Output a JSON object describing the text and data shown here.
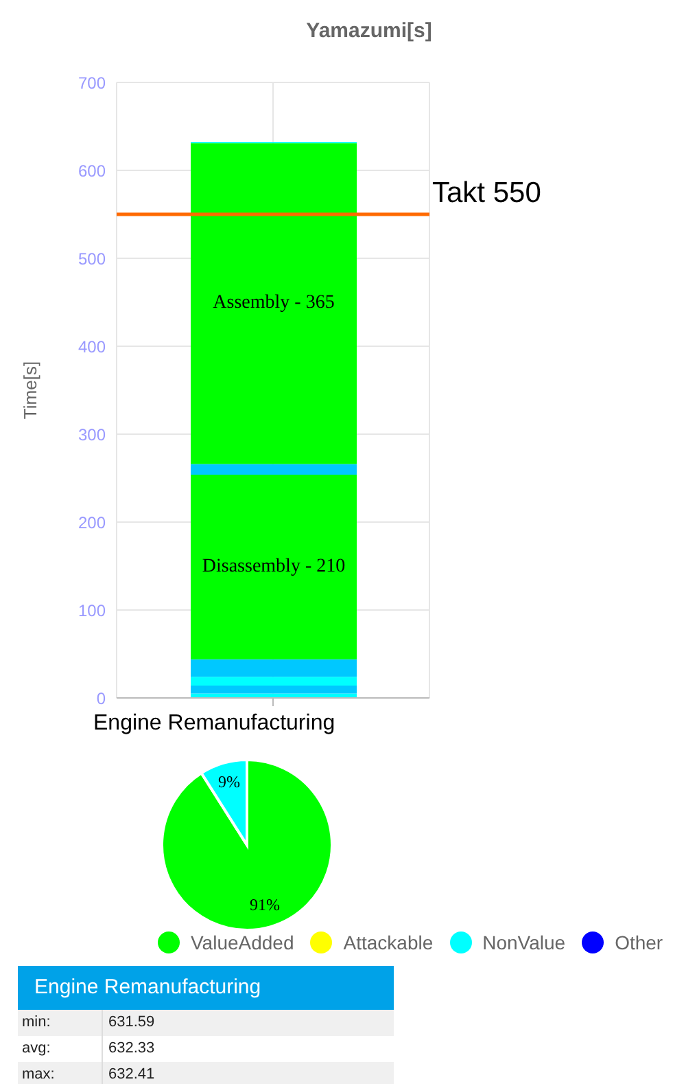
{
  "chart_data": [
    {
      "type": "bar",
      "title": "Yamazumi[s]",
      "ylabel": "Time[s]",
      "categories": [
        null
      ],
      "stacked": true,
      "ylim": [
        0,
        700
      ],
      "yticks": [
        0,
        100,
        200,
        300,
        400,
        500,
        600,
        700
      ],
      "grid": true,
      "series": [
        {
          "color": "#00ffff",
          "values": [
            5
          ]
        },
        {
          "color": "#00c8ff",
          "values": [
            9
          ]
        },
        {
          "color": "#00ffff",
          "values": [
            10
          ]
        },
        {
          "color": "#00c8ff",
          "values": [
            20
          ]
        },
        {
          "name": "Disassembly - 210",
          "color": "#00ff00",
          "values": [
            210
          ]
        },
        {
          "color": "#00c8ff",
          "values": [
            12
          ]
        },
        {
          "name": "Assembly - 365",
          "color": "#00ff00",
          "values": [
            365
          ]
        },
        {
          "color": "#00ffff",
          "values": [
            1
          ]
        }
      ],
      "ref_lines": [
        {
          "axis": "y",
          "value": 550,
          "label": "Takt 550",
          "color": "#ff6a00"
        }
      ]
    },
    {
      "type": "pie",
      "title": "Engine Remanufacturing",
      "categories": [
        "ValueAdded",
        "Attackable",
        "NonValue",
        "Other"
      ],
      "values": [
        91,
        0,
        9,
        0
      ],
      "colors": [
        "#00ff00",
        "#ffff00",
        "#00ffff",
        "#0000ff"
      ],
      "value_labels": [
        "91%",
        null,
        "9%",
        null
      ],
      "legend": "bottom"
    },
    {
      "type": "other",
      "title": "Engine Remanufacturing",
      "annotations": [
        "min:",
        "631.59",
        "avg:",
        "632.33",
        "max:",
        "632.41"
      ]
    }
  ]
}
